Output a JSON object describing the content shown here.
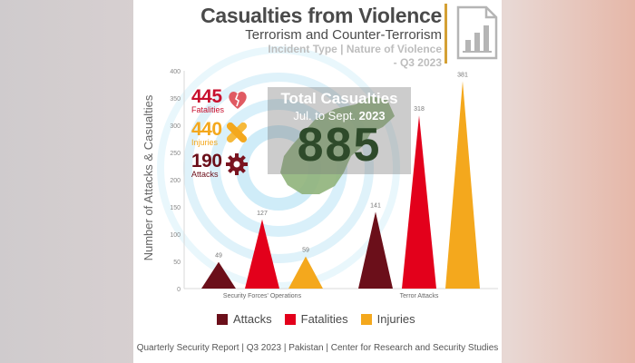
{
  "header": {
    "title": "Casualties from Violence",
    "subtitle": "Terrorism and Counter-Terrorism",
    "incident_line1": "Incident Type | Nature of Violence",
    "incident_line2": "- Q3 2023"
  },
  "stats": {
    "fatalities": {
      "value": "445",
      "label": "Fatalities",
      "color": "#c8102e"
    },
    "injuries": {
      "value": "440",
      "label": "Injuries",
      "color": "#f4a81d"
    },
    "attacks": {
      "value": "190",
      "label": "Attacks",
      "color": "#6b0f1a"
    }
  },
  "total": {
    "title": "Total Casualties",
    "period": "Jul. to Sept.",
    "year": "2023",
    "value": "885"
  },
  "chart_data": {
    "type": "bar",
    "ylabel": "Number of Attacks & Casualties",
    "ylim": [
      0,
      400
    ],
    "yticks": [
      "0",
      "50",
      "100",
      "150",
      "200",
      "250",
      "300",
      "350",
      "400"
    ],
    "categories": [
      "Security Forces' Operations",
      "Terror Attacks"
    ],
    "series": [
      {
        "name": "Attacks",
        "color": "#6b0f1a",
        "values": [
          49,
          141
        ],
        "labels": [
          "49",
          "141"
        ]
      },
      {
        "name": "Fatalities",
        "color": "#e3001b",
        "values": [
          127,
          318
        ],
        "labels": [
          "127",
          "318"
        ]
      },
      {
        "name": "Injuries",
        "color": "#f4a81d",
        "values": [
          59,
          381
        ],
        "labels": [
          "59",
          "381"
        ]
      }
    ],
    "legend_position": "bottom",
    "grid": false
  },
  "footer": "Quarterly Security Report | Q3 2023 | Pakistan | Center for Research and Security Studies"
}
